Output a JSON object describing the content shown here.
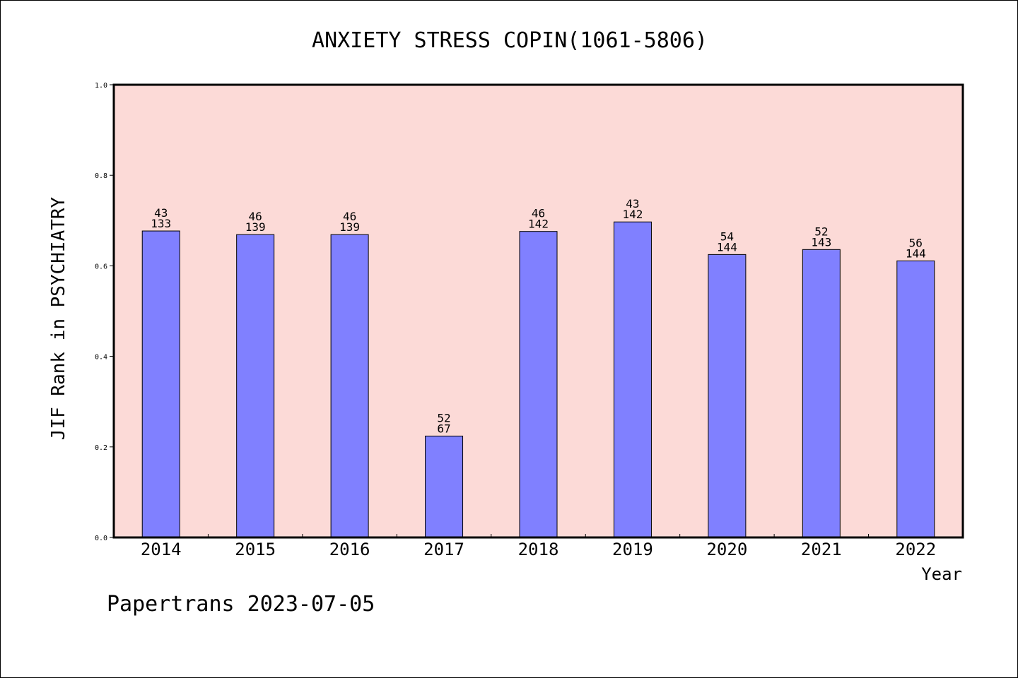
{
  "chart_data": {
    "type": "bar",
    "title": "ANXIETY STRESS COPIN(1061-5806)",
    "xlabel": "Year",
    "ylabel": "JIF Rank in PSYCHIATRY",
    "ylim": [
      0,
      1.0
    ],
    "yticks": [
      "0.0",
      "0.2",
      "0.4",
      "0.6",
      "0.8",
      "1.0"
    ],
    "categories": [
      "2014",
      "2015",
      "2016",
      "2017",
      "2018",
      "2019",
      "2020",
      "2021",
      "2022"
    ],
    "values": [
      0.677,
      0.669,
      0.669,
      0.224,
      0.676,
      0.697,
      0.625,
      0.636,
      0.611
    ],
    "rank": [
      "43",
      "46",
      "46",
      "52",
      "46",
      "43",
      "54",
      "52",
      "56"
    ],
    "total": [
      "133",
      "139",
      "139",
      "67",
      "142",
      "142",
      "144",
      "143",
      "144"
    ],
    "grid": false,
    "colors": {
      "plot_background": "#fcdad7",
      "bar_fill": "#8080ff",
      "bar_edge": "#000000"
    }
  },
  "footer": {
    "text": "Papertrans 2023-07-05"
  }
}
